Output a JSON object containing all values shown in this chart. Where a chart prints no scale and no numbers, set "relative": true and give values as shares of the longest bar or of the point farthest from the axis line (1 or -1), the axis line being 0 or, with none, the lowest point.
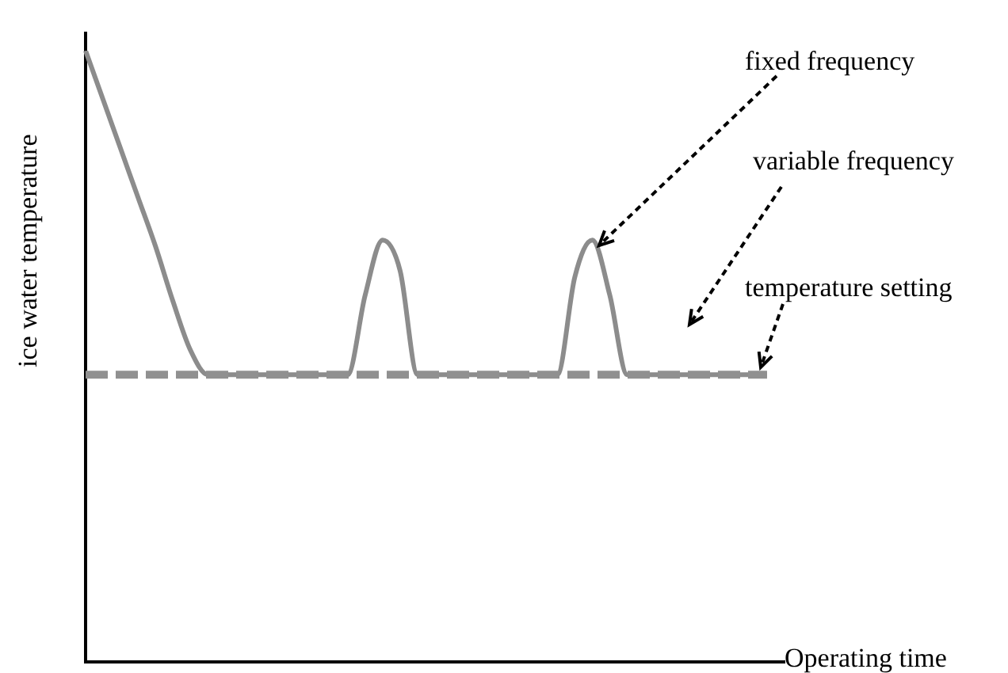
{
  "chart_data": {
    "type": "line",
    "relative": true,
    "xlabel": "Operating time",
    "ylabel": "ice water temperature",
    "categories": [
      null,
      null,
      null,
      null,
      null,
      null,
      null,
      null,
      null,
      null,
      null,
      null,
      null,
      null,
      null,
      null,
      null,
      null,
      null,
      null,
      null,
      null,
      null,
      null,
      null,
      null,
      null,
      null,
      null,
      null,
      null,
      null,
      null,
      null,
      null,
      null,
      null,
      null,
      null,
      null,
      null
    ],
    "series": [
      {
        "name": "fixed frequency",
        "color": "#8c8c8c",
        "line_style": "solid",
        "values": [
          1,
          0.92,
          0.84,
          0.76,
          0.68,
          0.59,
          0.51,
          0.47,
          0.47,
          0.47,
          0.47,
          0.47,
          0.47,
          0.47,
          0.47,
          0.47,
          0.6,
          0.69,
          0.64,
          0.47,
          0.47,
          0.47,
          0.47,
          0.47,
          0.47,
          0.47,
          0.47,
          0.47,
          0.63,
          0.69,
          0.6,
          0.47,
          0.47,
          0.47,
          0.47,
          0.47,
          0.47,
          0.47,
          0.47,
          0.47,
          null
        ]
      },
      {
        "name": "temperature setting",
        "color": "#909090",
        "line_style": "dashed",
        "values": [
          0.47,
          0.47,
          0.47,
          0.47,
          0.47,
          0.47,
          0.47,
          0.47,
          0.47,
          0.47,
          0.47,
          0.47,
          0.47,
          0.47,
          0.47,
          0.47,
          0.47,
          0.47,
          0.47,
          0.47,
          0.47,
          0.47,
          0.47,
          0.47,
          0.47,
          0.47,
          0.47,
          0.47,
          0.47,
          0.47,
          0.47,
          0.47,
          0.47,
          0.47,
          0.47,
          0.47,
          0.47,
          0.47,
          0.47,
          0.47,
          null
        ]
      }
    ],
    "annotations": [
      "variable frequency"
    ],
    "legend": false,
    "grid": false,
    "marker": "none"
  }
}
